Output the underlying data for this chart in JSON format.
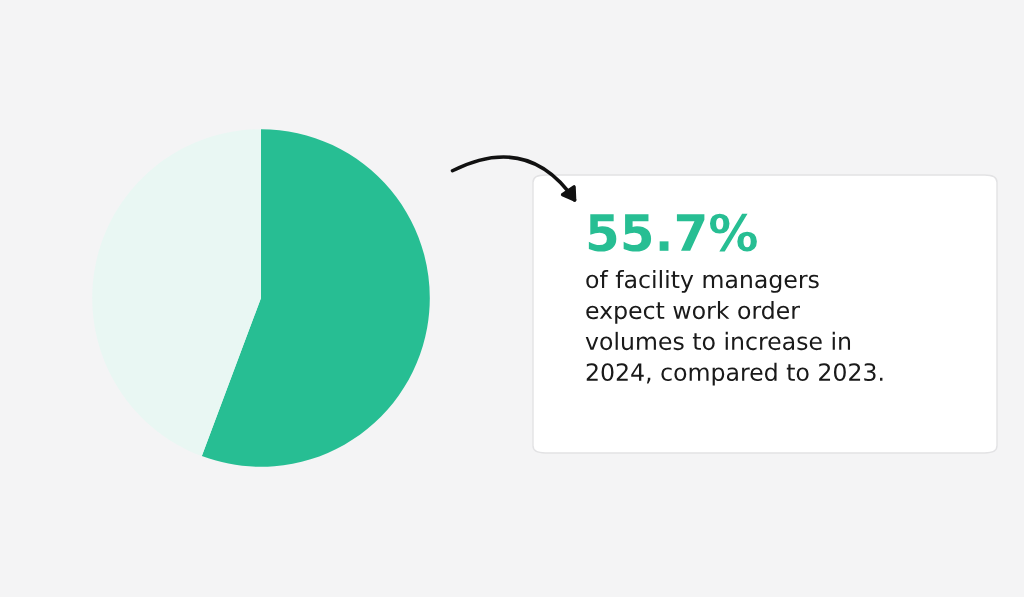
{
  "chart_data": {
    "type": "pie",
    "categories": [
      null,
      null
    ],
    "values": [
      55.7,
      44.3
    ],
    "colors": [
      "#27be93",
      "#e9f7f3"
    ],
    "value_labels": [
      "55.7%",
      null
    ],
    "annotations": [
      "of facility managers\nexpect work order\nvolumes to increase in\n2024, compared to 2023."
    ],
    "legend": false
  }
}
